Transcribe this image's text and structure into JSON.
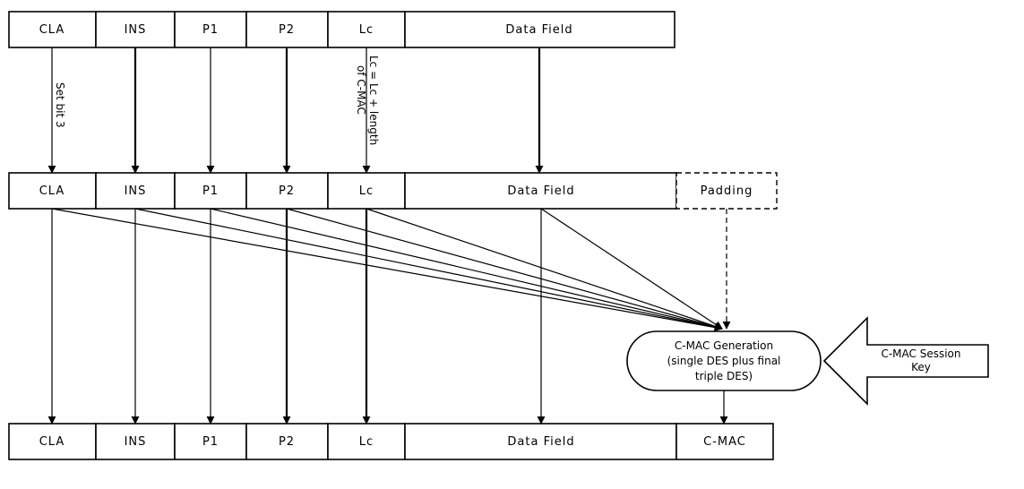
{
  "rows": {
    "original": {
      "cla": "CLA",
      "ins": "INS",
      "p1": "P1",
      "p2": "P2",
      "lc": "Lc",
      "data": "Data Field"
    },
    "modified": {
      "cla": "CLA",
      "ins": "INS",
      "p1": "P1",
      "p2": "P2",
      "lc": "Lc",
      "data": "Data Field",
      "padding": "Padding"
    },
    "final": {
      "cla": "CLA",
      "ins": "INS",
      "p1": "P1",
      "p2": "P2",
      "lc": "Lc",
      "data": "Data Field",
      "cmac": "C-MAC"
    }
  },
  "annotations": {
    "set_bit": "Set bit 3",
    "lc_rule_line1": "Lc = Lc + length",
    "lc_rule_line2": "of C-MAC"
  },
  "generator": {
    "line1": "C-MAC Generation",
    "line2": "(single DES plus final",
    "line3": "triple DES)"
  },
  "session_key": {
    "line1": "C-MAC Session",
    "line2": "Key"
  }
}
